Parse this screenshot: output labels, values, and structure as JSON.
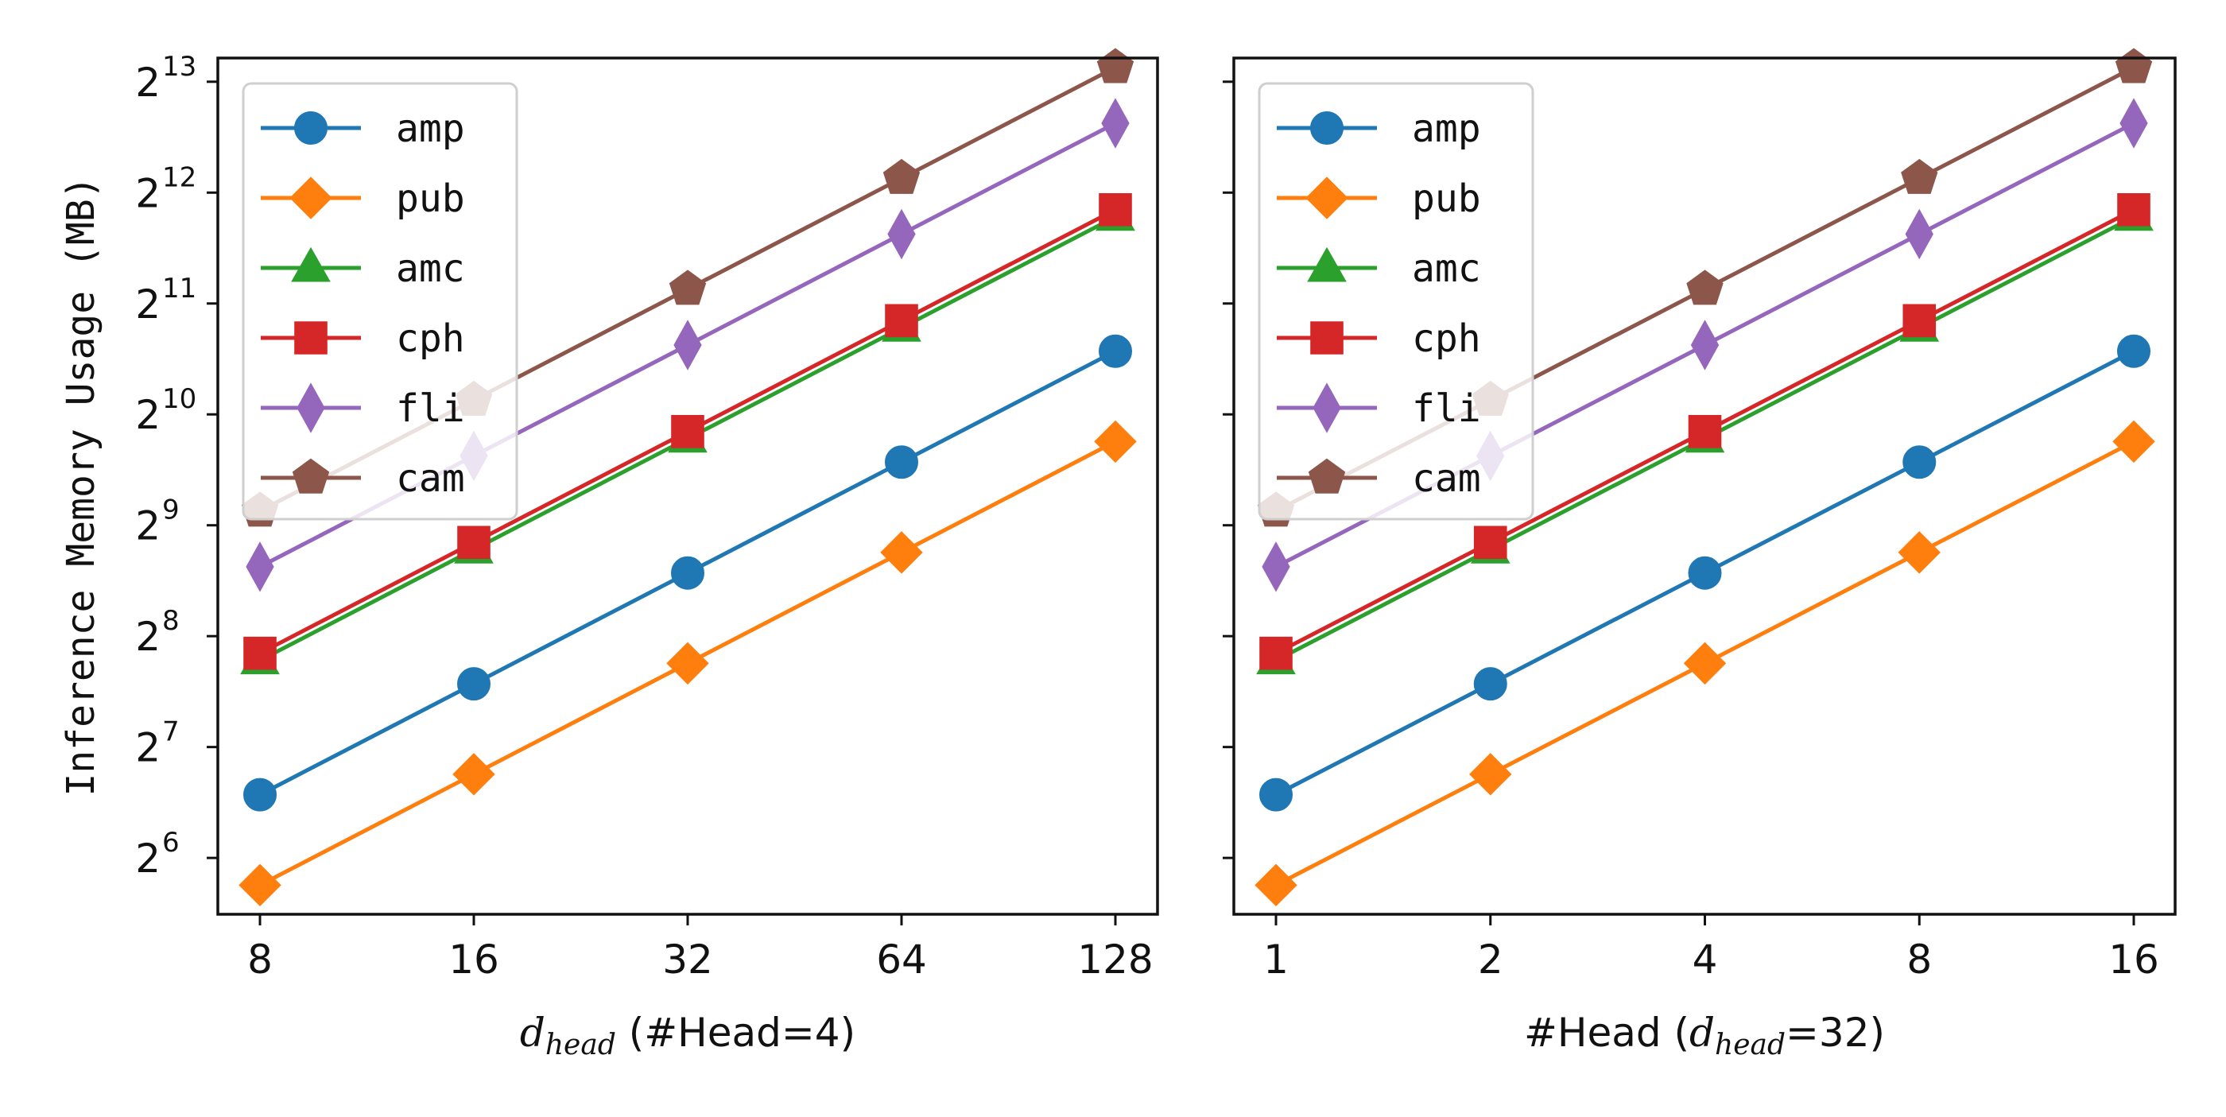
{
  "chart_data": [
    {
      "type": "line",
      "title": "",
      "xlabel_var": "d",
      "xlabel_sub": "head",
      "xlabel_rest": "(#Head=4)",
      "ylabel": "Inference Memory Usage (MB)",
      "yscale": "log2",
      "ylim": [
        45,
        9500
      ],
      "y_ticks": [
        64,
        128,
        256,
        512,
        1024,
        2048,
        4096,
        8192
      ],
      "y_tick_exponents": [
        "6",
        "7",
        "8",
        "9",
        "10",
        "11",
        "12",
        "13"
      ],
      "x": [
        8,
        16,
        32,
        64,
        128
      ],
      "x_tick_labels": [
        "8",
        "16",
        "32",
        "64",
        "128"
      ],
      "legend_position": "upper-left",
      "grid": false,
      "series": [
        {
          "name": "amp",
          "color": "#1f77b4",
          "marker": "circle",
          "values": [
            95,
            190,
            380,
            760,
            1520
          ]
        },
        {
          "name": "pub",
          "color": "#ff7f0e",
          "marker": "diamond",
          "values": [
            54,
            108,
            216,
            432,
            864
          ]
        },
        {
          "name": "amc",
          "color": "#2ca02c",
          "marker": "triangle",
          "values": [
            220,
            440,
            880,
            1760,
            3520
          ]
        },
        {
          "name": "cph",
          "color": "#d62728",
          "marker": "square",
          "values": [
            230,
            460,
            920,
            1840,
            3680
          ]
        },
        {
          "name": "fli",
          "color": "#9467bd",
          "marker": "thin-diamond",
          "values": [
            395,
            790,
            1580,
            3160,
            6320
          ]
        },
        {
          "name": "cam",
          "color": "#8c564b",
          "marker": "pentagon",
          "values": [
            560,
            1120,
            2240,
            4480,
            8960
          ]
        }
      ]
    },
    {
      "type": "line",
      "title": "",
      "xlabel_pre": "#Head",
      "xlabel_var": "d",
      "xlabel_sub": "head",
      "xlabel_post": "=32)",
      "ylabel": "",
      "yscale": "log2",
      "ylim": [
        45,
        9500
      ],
      "y_ticks": [
        64,
        128,
        256,
        512,
        1024,
        2048,
        4096,
        8192
      ],
      "x": [
        1,
        2,
        4,
        8,
        16
      ],
      "x_tick_labels": [
        "1",
        "2",
        "4",
        "8",
        "16"
      ],
      "legend_position": "upper-left",
      "grid": false,
      "series": [
        {
          "name": "amp",
          "color": "#1f77b4",
          "marker": "circle",
          "values": [
            95,
            190,
            380,
            760,
            1520
          ]
        },
        {
          "name": "pub",
          "color": "#ff7f0e",
          "marker": "diamond",
          "values": [
            54,
            108,
            216,
            432,
            864
          ]
        },
        {
          "name": "amc",
          "color": "#2ca02c",
          "marker": "triangle",
          "values": [
            220,
            440,
            880,
            1760,
            3520
          ]
        },
        {
          "name": "cph",
          "color": "#d62728",
          "marker": "square",
          "values": [
            230,
            460,
            920,
            1840,
            3680
          ]
        },
        {
          "name": "fli",
          "color": "#9467bd",
          "marker": "thin-diamond",
          "values": [
            395,
            790,
            1580,
            3160,
            6320
          ]
        },
        {
          "name": "cam",
          "color": "#8c564b",
          "marker": "pentagon",
          "values": [
            560,
            1120,
            2240,
            4480,
            8960
          ]
        }
      ]
    }
  ]
}
